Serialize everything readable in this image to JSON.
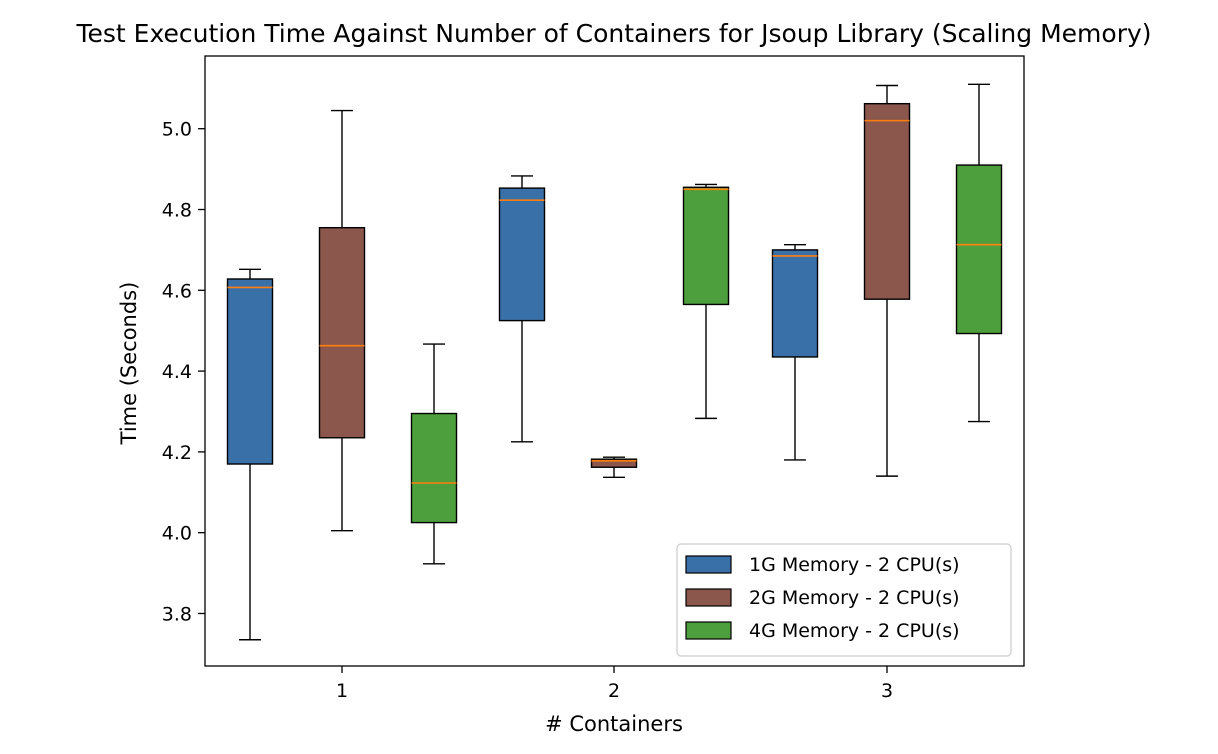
{
  "chart_data": {
    "type": "box",
    "title": "Test Execution Time Against Number of Containers for Jsoup Library (Scaling Memory)",
    "xlabel": "# Containers",
    "ylabel": "Time (Seconds)",
    "categories": [
      "1",
      "2",
      "3"
    ],
    "ylim": [
      3.67,
      5.18
    ],
    "yticks": [
      "3.8",
      "4.0",
      "4.2",
      "4.4",
      "4.6",
      "4.8",
      "5.0"
    ],
    "grid": false,
    "legend_position": "lower right",
    "series": [
      {
        "name": "1G Memory - 2 CPU(s)",
        "color": "#3a70a8",
        "boxes": [
          {
            "whislo": 3.735,
            "q1": 4.17,
            "med": 4.607,
            "q3": 4.628,
            "whishi": 4.652
          },
          {
            "whislo": 4.225,
            "q1": 4.525,
            "med": 4.823,
            "q3": 4.853,
            "whishi": 4.883
          },
          {
            "whislo": 4.18,
            "q1": 4.435,
            "med": 4.685,
            "q3": 4.7,
            "whishi": 4.713
          }
        ]
      },
      {
        "name": "2G Memory - 2 CPU(s)",
        "color": "#8b564b",
        "boxes": [
          {
            "whislo": 4.005,
            "q1": 4.235,
            "med": 4.463,
            "q3": 4.755,
            "whishi": 5.045
          },
          {
            "whislo": 4.137,
            "q1": 4.162,
            "med": 4.178,
            "q3": 4.182,
            "whishi": 4.187
          },
          {
            "whislo": 4.14,
            "q1": 4.578,
            "med": 5.02,
            "q3": 5.062,
            "whishi": 5.107
          }
        ]
      },
      {
        "name": "4G Memory - 2 CPU(s)",
        "color": "#4d9f3d",
        "boxes": [
          {
            "whislo": 3.923,
            "q1": 4.025,
            "med": 4.123,
            "q3": 4.295,
            "whishi": 4.467
          },
          {
            "whislo": 4.283,
            "q1": 4.565,
            "med": 4.85,
            "q3": 4.855,
            "whishi": 4.862
          },
          {
            "whislo": 4.275,
            "q1": 4.493,
            "med": 4.713,
            "q3": 4.91,
            "whishi": 5.11
          }
        ]
      }
    ],
    "median_color": "#ff7f0e"
  }
}
